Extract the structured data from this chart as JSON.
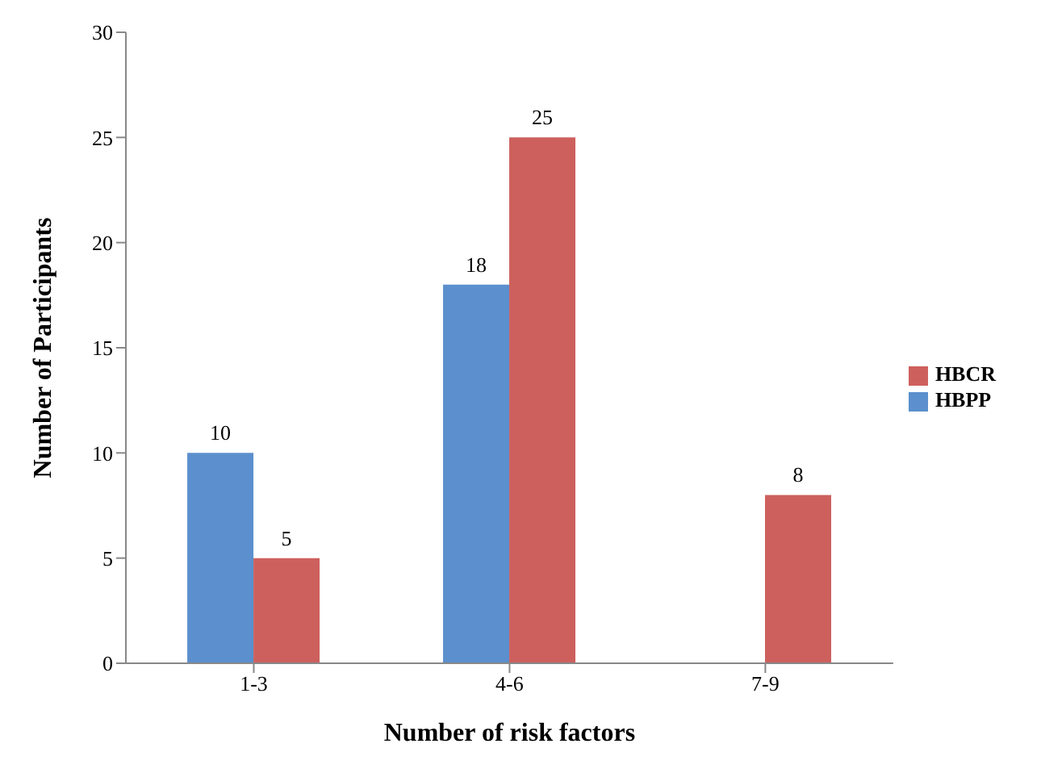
{
  "chart_data": {
    "type": "bar",
    "xlabel": "Number of risk factors",
    "ylabel": "Number of Participants",
    "categories": [
      "1-3",
      "4-6",
      "7-9"
    ],
    "series": [
      {
        "name": "HBPP",
        "color": "#5b8fcd",
        "values": [
          10,
          18,
          null
        ]
      },
      {
        "name": "HBCR",
        "color": "#cd605d",
        "values": [
          5,
          25,
          8
        ]
      }
    ],
    "ylim": [
      0,
      30
    ],
    "yticks": [
      0,
      5,
      10,
      15,
      20,
      25,
      30
    ],
    "data_labels": true,
    "legend": "right",
    "grid": false
  }
}
